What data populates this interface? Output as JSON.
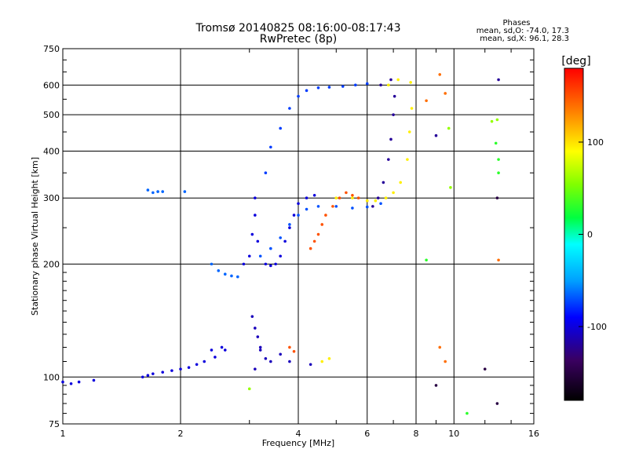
{
  "chart_data": {
    "type": "scatter",
    "title": "Tromsø 20140825 08:16:00-08:17:43",
    "subtitle": "RwPretec (8p)",
    "info": {
      "heading": "Phases",
      "line1": "mean, sd,O: -74.0, 17.3",
      "line2": "mean, sd,X:  96.1, 28.3"
    },
    "xlabel": "Frequency [MHz]",
    "ylabel": "Stationary phase Virtual Height [km]",
    "x_scale": "log",
    "y_scale": "log",
    "xlim": [
      1,
      16
    ],
    "ylim": [
      75,
      750
    ],
    "x_ticks": [
      1,
      2,
      4,
      6,
      8,
      10,
      16
    ],
    "y_ticks": [
      75,
      100,
      200,
      300,
      400,
      500,
      600,
      750
    ],
    "grid": true,
    "colorbar": {
      "label": "[deg]",
      "range": [
        -180,
        180
      ],
      "ticks": [
        100,
        0,
        -100
      ]
    },
    "series": [
      {
        "phase": -100,
        "points": [
          [
            1.0,
            97
          ],
          [
            1.05,
            96
          ],
          [
            1.1,
            97
          ],
          [
            1.2,
            98
          ],
          [
            1.6,
            100
          ],
          [
            1.65,
            101
          ],
          [
            1.7,
            102
          ],
          [
            1.8,
            103
          ],
          [
            1.9,
            104
          ],
          [
            2.0,
            105
          ],
          [
            2.1,
            106
          ],
          [
            2.2,
            108
          ],
          [
            2.3,
            110
          ],
          [
            2.45,
            113
          ],
          [
            2.6,
            118
          ],
          [
            2.4,
            118
          ],
          [
            2.55,
            120
          ]
        ]
      },
      {
        "phase": -65,
        "points": [
          [
            2.4,
            200
          ],
          [
            2.5,
            192
          ],
          [
            2.6,
            188
          ],
          [
            2.7,
            186
          ],
          [
            2.8,
            185
          ],
          [
            1.7,
            310
          ],
          [
            1.75,
            312
          ],
          [
            1.8,
            312
          ],
          [
            2.05,
            312
          ],
          [
            1.65,
            315
          ]
        ]
      },
      {
        "phase": -100,
        "points": [
          [
            2.9,
            200
          ],
          [
            3.0,
            210
          ],
          [
            3.05,
            240
          ],
          [
            3.1,
            270
          ],
          [
            3.1,
            300
          ],
          [
            3.15,
            230
          ],
          [
            3.3,
            200
          ],
          [
            3.4,
            198
          ],
          [
            3.5,
            200
          ],
          [
            3.6,
            210
          ],
          [
            3.7,
            230
          ],
          [
            3.8,
            250
          ],
          [
            3.9,
            270
          ],
          [
            4.0,
            290
          ],
          [
            4.2,
            300
          ],
          [
            4.4,
            305
          ]
        ]
      },
      {
        "phase": -70,
        "points": [
          [
            3.2,
            210
          ],
          [
            3.4,
            220
          ],
          [
            3.6,
            235
          ],
          [
            3.8,
            255
          ],
          [
            4.0,
            270
          ],
          [
            4.2,
            280
          ],
          [
            4.5,
            285
          ],
          [
            5.0,
            285
          ],
          [
            5.5,
            282
          ],
          [
            6.0,
            284
          ],
          [
            6.5,
            290
          ]
        ]
      },
      {
        "phase": -110,
        "points": [
          [
            3.05,
            145
          ],
          [
            3.1,
            135
          ],
          [
            3.15,
            128
          ],
          [
            3.2,
            120
          ],
          [
            3.3,
            112
          ],
          [
            3.4,
            110
          ],
          [
            3.1,
            105
          ],
          [
            3.2,
            118
          ],
          [
            3.6,
            115
          ],
          [
            3.8,
            110
          ],
          [
            4.3,
            108
          ]
        ]
      },
      {
        "phase": 150,
        "points": [
          [
            4.3,
            220
          ],
          [
            4.4,
            230
          ],
          [
            4.5,
            240
          ],
          [
            4.6,
            255
          ],
          [
            4.7,
            270
          ],
          [
            4.9,
            285
          ],
          [
            5.1,
            300
          ],
          [
            5.3,
            310
          ],
          [
            5.5,
            305
          ],
          [
            5.7,
            300
          ],
          [
            6.0,
            295
          ],
          [
            3.8,
            120
          ],
          [
            3.9,
            117
          ]
        ]
      },
      {
        "phase": 95,
        "points": [
          [
            5.0,
            300
          ],
          [
            5.5,
            300
          ],
          [
            6.0,
            295
          ],
          [
            6.3,
            295
          ],
          [
            6.7,
            300
          ],
          [
            7.0,
            310
          ],
          [
            7.3,
            330
          ],
          [
            7.6,
            380
          ],
          [
            7.7,
            450
          ],
          [
            7.8,
            520
          ],
          [
            7.75,
            610
          ],
          [
            6.8,
            600
          ],
          [
            7.2,
            620
          ],
          [
            4.6,
            110
          ],
          [
            4.8,
            112
          ]
        ]
      },
      {
        "phase": -120,
        "points": [
          [
            6.2,
            285
          ],
          [
            6.4,
            300
          ],
          [
            6.6,
            330
          ],
          [
            6.8,
            380
          ],
          [
            6.9,
            430
          ],
          [
            7.0,
            500
          ],
          [
            7.05,
            560
          ],
          [
            6.5,
            600
          ],
          [
            6.9,
            620
          ],
          [
            9.0,
            440
          ],
          [
            13.0,
            620
          ]
        ]
      },
      {
        "phase": -75,
        "points": [
          [
            3.3,
            350
          ],
          [
            3.4,
            410
          ],
          [
            3.6,
            460
          ],
          [
            3.8,
            520
          ],
          [
            4.0,
            560
          ],
          [
            4.2,
            580
          ],
          [
            4.5,
            590
          ],
          [
            4.8,
            592
          ],
          [
            5.2,
            595
          ],
          [
            5.6,
            600
          ],
          [
            6.0,
            605
          ]
        ]
      },
      {
        "phase": 30,
        "points": [
          [
            8.5,
            205
          ],
          [
            10.8,
            80
          ],
          [
            12.8,
            420
          ],
          [
            13.0,
            380
          ],
          [
            13.0,
            350
          ]
        ]
      },
      {
        "phase": 140,
        "points": [
          [
            8.5,
            545
          ],
          [
            9.2,
            640
          ],
          [
            9.5,
            570
          ],
          [
            13.0,
            205
          ],
          [
            9.2,
            120
          ],
          [
            9.5,
            110
          ]
        ]
      },
      {
        "phase": 60,
        "points": [
          [
            9.7,
            460
          ],
          [
            9.8,
            320
          ],
          [
            12.5,
            480
          ],
          [
            12.9,
            485
          ],
          [
            3.0,
            93
          ]
        ]
      },
      {
        "phase": -150,
        "points": [
          [
            9.0,
            95
          ],
          [
            12.0,
            105
          ],
          [
            12.9,
            85
          ],
          [
            12.9,
            300
          ]
        ]
      }
    ]
  }
}
